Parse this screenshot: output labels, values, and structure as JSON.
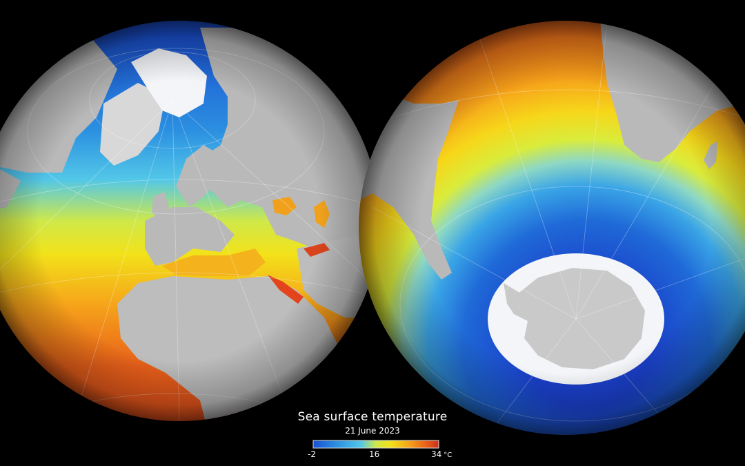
{
  "legend": {
    "title": "Sea surface temperature",
    "date": "21 June 2023",
    "ticks": {
      "min": "-2",
      "mid": "16",
      "max": "34",
      "unit": "°C"
    },
    "colors": [
      "#1a4fd0",
      "#2b8fe0",
      "#52c7e8",
      "#cfe84a",
      "#f2e21a",
      "#f6a51a",
      "#e8601a",
      "#c9301c"
    ]
  },
  "globes": [
    {
      "name": "northern-hemisphere-globe"
    },
    {
      "name": "southern-hemisphere-globe"
    }
  ]
}
